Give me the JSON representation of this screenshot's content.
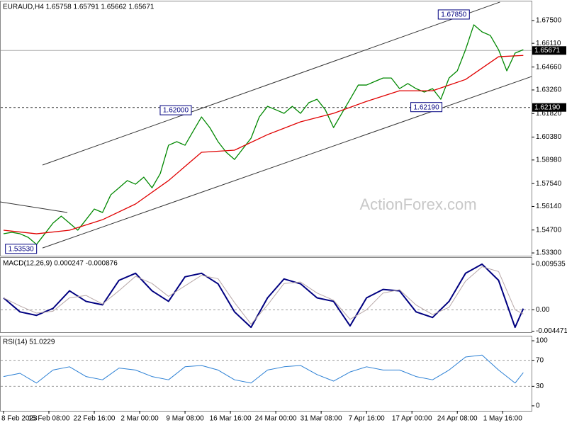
{
  "chart_data": [
    {
      "type": "line",
      "title": "EURAUD,H4  1.65758 1.65791 1.65662 1.65671",
      "watermark": "ActionForex.com",
      "xlim": [
        -3.4,
        512
      ],
      "ylim": [
        1.5313,
        1.6867
      ],
      "yticks": [
        {
          "value": 1.675,
          "label": "1.67500"
        },
        {
          "value": 1.6611,
          "label": "1.66110"
        },
        {
          "value": 1.6466,
          "label": "1.64660"
        },
        {
          "value": 1.6326,
          "label": "1.63260"
        },
        {
          "value": 1.6182,
          "label": "1.61820"
        },
        {
          "value": 1.6038,
          "label": "1.60380"
        },
        {
          "value": 1.5898,
          "label": "1.58980"
        },
        {
          "value": 1.5754,
          "label": "1.57540"
        },
        {
          "value": 1.5614,
          "label": "1.56140"
        },
        {
          "value": 1.547,
          "label": "1.54700"
        },
        {
          "value": 1.533,
          "label": "1.53300"
        }
      ],
      "series": [
        {
          "color": "#008800",
          "x": [
            0,
            8,
            16,
            24,
            32,
            40,
            48,
            56,
            64,
            72,
            80,
            88,
            96,
            104,
            112,
            120,
            128,
            136,
            144,
            152,
            160,
            168,
            176,
            184,
            192,
            200,
            208,
            216,
            224,
            232,
            240,
            248,
            256,
            264,
            272,
            280,
            288,
            296,
            304,
            312,
            320,
            328,
            336,
            344,
            352,
            360,
            368,
            376,
            384,
            392,
            400,
            408,
            416,
            424,
            432,
            440,
            448,
            456,
            464,
            472,
            480,
            488,
            496,
            504
          ],
          "values": [
            1.5447,
            1.5456,
            1.5447,
            1.5425,
            1.5382,
            1.5447,
            1.5512,
            1.5555,
            1.5512,
            1.5469,
            1.5533,
            1.5598,
            1.5577,
            1.5685,
            1.5728,
            1.5772,
            1.575,
            1.5793,
            1.5728,
            1.5815,
            1.5988,
            1.601,
            1.5988,
            1.6075,
            1.6161,
            1.6096,
            1.601,
            1.5945,
            1.5901,
            1.5966,
            1.6031,
            1.6161,
            1.6226,
            1.6205,
            1.6183,
            1.6226,
            1.6183,
            1.6248,
            1.6269,
            1.6205,
            1.6096,
            1.6183,
            1.6269,
            1.6356,
            1.6356,
            1.6378,
            1.6399,
            1.6399,
            1.6334,
            1.6365,
            1.6334,
            1.6313,
            1.6334,
            1.6269,
            1.6399,
            1.6443,
            1.6572,
            1.6724,
            1.6681,
            1.6659,
            1.6572,
            1.6443,
            1.6551,
            1.6572
          ]
        },
        {
          "color": "#e00000",
          "x": [
            0,
            32,
            64,
            96,
            128,
            160,
            192,
            224,
            256,
            288,
            320,
            352,
            384,
            416,
            448,
            480,
            504
          ],
          "values": [
            1.5469,
            1.5447,
            1.5469,
            1.5533,
            1.5629,
            1.5772,
            1.5945,
            1.5958,
            1.6053,
            1.6131,
            1.6183,
            1.6256,
            1.6321,
            1.6321,
            1.639,
            1.6529,
            1.6537
          ]
        }
      ],
      "trendlines": [
        {
          "color": "#333333",
          "x": [
            37.8,
            481.3
          ],
          "values": [
            1.5867,
            1.6863
          ]
        },
        {
          "color": "#333333",
          "x": [
            37.8,
            512
          ],
          "values": [
            1.536,
            1.6408
          ]
        },
        {
          "color": "#333333",
          "x": [
            -3.4,
            61.9
          ],
          "values": [
            1.5642,
            1.5577
          ]
        }
      ],
      "price_lines": [
        {
          "value": 1.65671,
          "label": "1.65671",
          "style": "solid"
        },
        {
          "value": 1.6219,
          "label": "1.62190",
          "style": "dashed"
        }
      ],
      "annotations": [
        {
          "value": 1.6785,
          "label": "1.67850",
          "x": 436.6
        },
        {
          "value": 1.62,
          "label": "1.62000",
          "x": 167
        },
        {
          "value": 1.6219,
          "label": "1.62190",
          "x": 410
        },
        {
          "value": 1.5353,
          "label": "1.53530",
          "x": 17
        }
      ]
    },
    {
      "type": "line",
      "title": "MACD(12,26,9) 0.000247 -0.000876",
      "xlim": [
        -3.4,
        512
      ],
      "ylim": [
        -0.00469,
        0.01086
      ],
      "yticks": [
        0.009535,
        {
          "value": 0,
          "label": "0.00"
        },
        -0.004471
      ],
      "dashed_levels": [
        0
      ],
      "series": [
        {
          "color": "#000080",
          "width": 2,
          "x": [
            0,
            16,
            32,
            48,
            64,
            80,
            96,
            112,
            128,
            144,
            160,
            176,
            192,
            208,
            224,
            240,
            256,
            272,
            288,
            304,
            320,
            336,
            352,
            368,
            384,
            400,
            416,
            432,
            448,
            464,
            480,
            496,
            504
          ],
          "values": [
            0.00249,
            -0.00044,
            -0.00117,
            0.00029,
            0.00396,
            0.00176,
            0.00103,
            0.00616,
            0.00763,
            0.00396,
            0.00176,
            0.00689,
            0.00763,
            0.00543,
            -0.00044,
            -0.00367,
            0.00249,
            0.00645,
            0.00543,
            0.00249,
            0.00176,
            -0.00337,
            0.00249,
            0.00425,
            0.00396,
            -0.00044,
            -0.00161,
            0.00176,
            0.00763,
            0.00954,
            0.00616,
            -0.00367,
            0.000247
          ]
        },
        {
          "color": "#b8a8a8",
          "width": 1,
          "x": [
            0,
            16,
            32,
            48,
            64,
            80,
            96,
            112,
            128,
            144,
            160,
            176,
            192,
            208,
            224,
            240,
            256,
            272,
            288,
            304,
            320,
            336,
            352,
            368,
            384,
            400,
            416,
            432,
            448,
            464,
            480,
            496,
            504
          ],
          "values": [
            0.0025,
            0.0008,
            -0.0007,
            -0.0003,
            0.0025,
            0.003,
            0.0012,
            0.004,
            0.007,
            0.0055,
            0.0028,
            0.005,
            0.0072,
            0.0065,
            0.0015,
            -0.003,
            0.001,
            0.0055,
            0.0058,
            0.0035,
            0.002,
            -0.002,
            0,
            0.0035,
            0.0042,
            0.001,
            -0.001,
            0.0005,
            0.006,
            0.009,
            0.008,
            0,
            -0.000876
          ]
        }
      ]
    },
    {
      "type": "line",
      "title": "RSI(14) 51.0229",
      "xlim": [
        -3.4,
        512
      ],
      "ylim": [
        -7.7,
        106.6
      ],
      "yticks": [
        100,
        70,
        30,
        0
      ],
      "dashed_levels": [
        70,
        30
      ],
      "xticks": [
        {
          "value": 0,
          "label": "8 Feb 2023"
        },
        {
          "value": 44,
          "label": "15 Feb 08:00"
        },
        {
          "value": 88,
          "label": "22 Feb 16:00"
        },
        {
          "value": 132,
          "label": "2 Mar 00:00"
        },
        {
          "value": 176,
          "label": "9 Mar 08:00"
        },
        {
          "value": 220,
          "label": "16 Mar 16:00"
        },
        {
          "value": 264,
          "label": "24 Mar 00:00"
        },
        {
          "value": 308,
          "label": "31 Mar 08:00"
        },
        {
          "value": 352,
          "label": "7 Apr 16:00"
        },
        {
          "value": 396,
          "label": "17 Apr 00:00"
        },
        {
          "value": 440,
          "label": "24 Apr 08:00"
        },
        {
          "value": 484,
          "label": "1 May 16:00"
        }
      ],
      "series": [
        {
          "color": "#2a7fd4",
          "width": 1,
          "x": [
            0,
            16,
            32,
            48,
            64,
            80,
            96,
            112,
            128,
            144,
            160,
            176,
            192,
            208,
            224,
            240,
            256,
            272,
            288,
            304,
            320,
            336,
            352,
            368,
            384,
            400,
            416,
            432,
            448,
            464,
            480,
            496,
            504
          ],
          "values": [
            45,
            50,
            35,
            55,
            60,
            45,
            40,
            58,
            55,
            45,
            40,
            60,
            62,
            55,
            40,
            35,
            55,
            60,
            62,
            48,
            38,
            52,
            60,
            55,
            55,
            45,
            40,
            55,
            75,
            78,
            55,
            35,
            51.0229
          ]
        }
      ]
    }
  ]
}
